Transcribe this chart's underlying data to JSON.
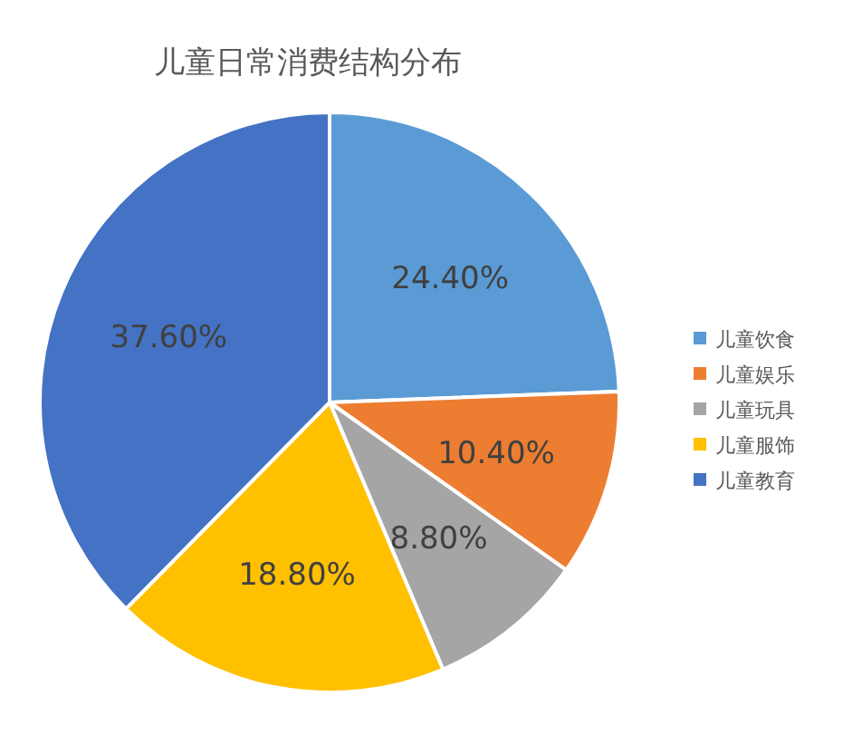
{
  "chart_data": {
    "type": "pie",
    "title": "儿童日常消费结构分布",
    "categories": [
      "儿童饮食",
      "儿童娱乐",
      "儿童玩具",
      "儿童服饰",
      "儿童教育"
    ],
    "values": [
      24.4,
      10.4,
      8.8,
      18.8,
      37.6
    ],
    "colors": [
      "#5b9bd5",
      "#ed7d31",
      "#a5a5a5",
      "#ffc000",
      "#4472c4"
    ],
    "value_labels": [
      "24.40%",
      "10.40%",
      "8.80%",
      "18.80%",
      "37.60%"
    ],
    "legend": "right"
  }
}
